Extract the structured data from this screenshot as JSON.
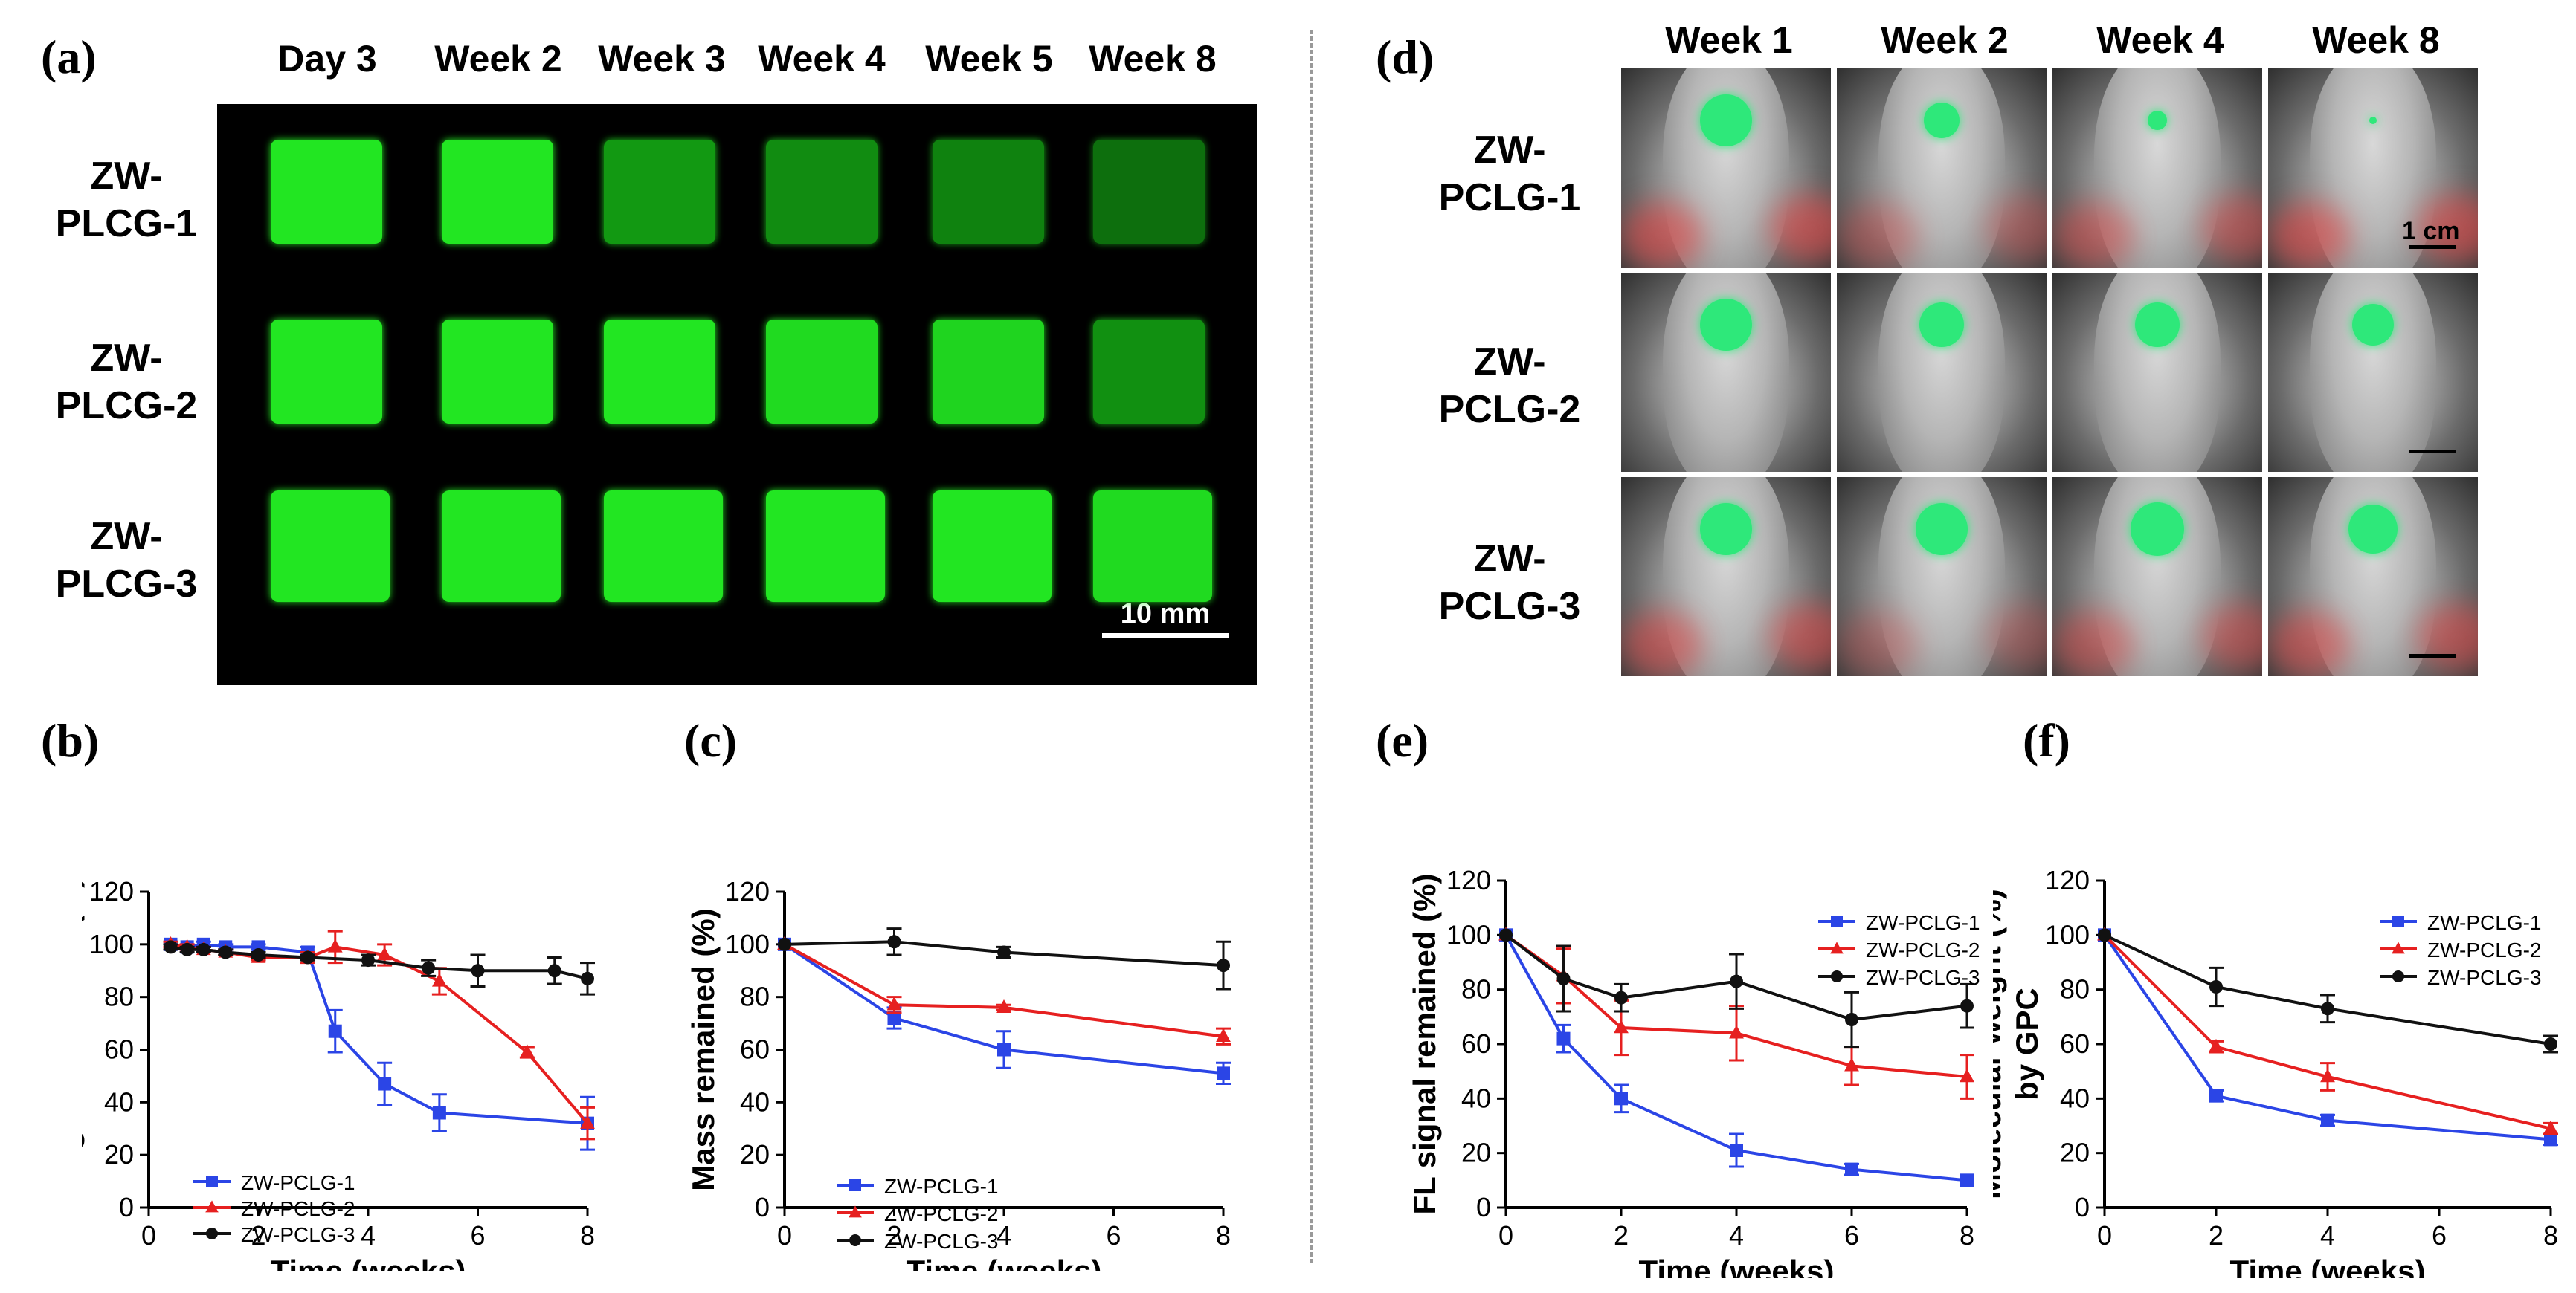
{
  "panel_labels": {
    "a": "(a)",
    "b": "(b)",
    "c": "(c)",
    "d": "(d)",
    "e": "(e)",
    "f": "(f)"
  },
  "panel_a": {
    "columns": [
      "Day 3",
      "Week 2",
      "Week 3",
      "Week 4",
      "Week 5",
      "Week 8"
    ],
    "rows": [
      [
        "ZW-",
        "PLCG-1"
      ],
      [
        "ZW-",
        "PLCG-2"
      ],
      [
        "ZW-",
        "PLCG-3"
      ]
    ],
    "scale_bar": "10 mm",
    "gel_color": "#22e622",
    "dim_gel_color": "#16b416"
  },
  "panel_d": {
    "columns": [
      "Week 1",
      "Week 2",
      "Week 4",
      "Week 8"
    ],
    "rows": [
      [
        "ZW-",
        "PCLG-1"
      ],
      [
        "ZW-",
        "PCLG-2"
      ],
      [
        "ZW-",
        "PCLG-3"
      ]
    ],
    "scale_bar": "1 cm",
    "spot_color": "#2ee87a",
    "heat_color": "#f04646"
  },
  "series_colors": {
    "s1": "#2b45e6",
    "s2": "#e62020",
    "s3": "#111111"
  },
  "chart_data": [
    {
      "id": "b",
      "type": "line",
      "xlabel": "Time (weeks)",
      "ylabel": "FL signal reduction (%)",
      "xlim": [
        0,
        8
      ],
      "ylim": [
        0,
        120
      ],
      "xticks": [
        0,
        2,
        4,
        6,
        8
      ],
      "yticks": [
        0,
        20,
        40,
        60,
        80,
        100,
        120
      ],
      "legend_position": "bottom-left",
      "series": [
        {
          "name": "ZW-PCLG-1",
          "marker": "square",
          "x": [
            0.4,
            0.7,
            1,
            1.4,
            2,
            2.9,
            3.4,
            4.3,
            5.3,
            8
          ],
          "y": [
            100,
            99,
            100,
            99,
            99,
            97,
            67,
            47,
            36,
            32
          ],
          "err": [
            1,
            1,
            1,
            1,
            1,
            2,
            8,
            8,
            7,
            10
          ]
        },
        {
          "name": "ZW-PCLG-2",
          "marker": "triangle",
          "x": [
            0.4,
            0.7,
            1,
            1.4,
            2,
            2.9,
            3.4,
            4.3,
            5.3,
            6.9,
            8
          ],
          "y": [
            100,
            99,
            98,
            97,
            95,
            95,
            99,
            96,
            86,
            59,
            32
          ],
          "err": [
            1,
            1,
            1,
            1,
            1,
            2,
            6,
            4,
            5,
            2,
            6
          ]
        },
        {
          "name": "ZW-PCLG-3",
          "marker": "circle",
          "x": [
            0.4,
            0.7,
            1,
            1.4,
            2,
            2.9,
            4,
            5.1,
            6,
            7.4,
            8
          ],
          "y": [
            99,
            98,
            98,
            97,
            96,
            95,
            94,
            91,
            90,
            90,
            87
          ],
          "err": [
            1,
            1,
            1,
            1,
            1,
            1,
            2,
            3,
            6,
            5,
            6
          ]
        }
      ]
    },
    {
      "id": "c",
      "type": "line",
      "xlabel": "Time (weeks)",
      "ylabel": "Mass remained (%)",
      "xlim": [
        0,
        8
      ],
      "ylim": [
        0,
        120
      ],
      "xticks": [
        0,
        2,
        4,
        6,
        8
      ],
      "yticks": [
        0,
        20,
        40,
        60,
        80,
        100,
        120
      ],
      "legend_position": "bottom-left",
      "series": [
        {
          "name": "ZW-PCLG-1",
          "marker": "square",
          "x": [
            0,
            2,
            4,
            8
          ],
          "y": [
            100,
            72,
            60,
            51
          ],
          "err": [
            0,
            4,
            7,
            4
          ]
        },
        {
          "name": "ZW-PCLG-2",
          "marker": "triangle",
          "x": [
            0,
            2,
            4,
            8
          ],
          "y": [
            100,
            77,
            76,
            65
          ],
          "err": [
            0,
            3,
            1,
            3
          ]
        },
        {
          "name": "ZW-PCLG-3",
          "marker": "circle",
          "x": [
            0,
            2,
            4,
            8
          ],
          "y": [
            100,
            101,
            97,
            92
          ],
          "err": [
            0,
            5,
            2,
            9
          ]
        }
      ]
    },
    {
      "id": "e",
      "type": "line",
      "xlabel": "Time (weeks)",
      "ylabel": "FL signal remained (%)",
      "xlim": [
        0,
        8
      ],
      "ylim": [
        0,
        120
      ],
      "xticks": [
        0,
        2,
        4,
        6,
        8
      ],
      "yticks": [
        0,
        20,
        40,
        60,
        80,
        100,
        120
      ],
      "legend_position": "top-right",
      "series": [
        {
          "name": "ZW-PCLG-1",
          "marker": "square",
          "x": [
            0,
            1,
            2,
            4,
            6,
            8
          ],
          "y": [
            100,
            62,
            40,
            21,
            14,
            10
          ],
          "err": [
            0,
            5,
            5,
            6,
            2,
            2
          ]
        },
        {
          "name": "ZW-PCLG-2",
          "marker": "triangle",
          "x": [
            0,
            1,
            2,
            4,
            6,
            8
          ],
          "y": [
            100,
            85,
            66,
            64,
            52,
            48
          ],
          "err": [
            0,
            10,
            10,
            10,
            7,
            8
          ]
        },
        {
          "name": "ZW-PCLG-3",
          "marker": "circle",
          "x": [
            0,
            1,
            2,
            4,
            6,
            8
          ],
          "y": [
            100,
            84,
            77,
            83,
            69,
            74
          ],
          "err": [
            0,
            12,
            5,
            10,
            10,
            8
          ]
        }
      ]
    },
    {
      "id": "f",
      "type": "line",
      "xlabel": "Time (weeks)",
      "ylabel": "Molecular weight (%)",
      "ylabel2": "by GPC",
      "xlim": [
        0,
        8
      ],
      "ylim": [
        0,
        120
      ],
      "xticks": [
        0,
        2,
        4,
        6,
        8
      ],
      "yticks": [
        0,
        20,
        40,
        60,
        80,
        100,
        120
      ],
      "legend_position": "top-right",
      "series": [
        {
          "name": "ZW-PCLG-1",
          "marker": "square",
          "x": [
            0,
            2,
            4,
            8
          ],
          "y": [
            100,
            41,
            32,
            25
          ],
          "err": [
            0,
            2,
            2,
            2
          ]
        },
        {
          "name": "ZW-PCLG-2",
          "marker": "triangle",
          "x": [
            0,
            2,
            4,
            8
          ],
          "y": [
            100,
            59,
            48,
            29
          ],
          "err": [
            0,
            2,
            5,
            2
          ]
        },
        {
          "name": "ZW-PCLG-3",
          "marker": "circle",
          "x": [
            0,
            2,
            4,
            8
          ],
          "y": [
            100,
            81,
            73,
            60
          ],
          "err": [
            0,
            7,
            5,
            3
          ]
        }
      ]
    }
  ]
}
